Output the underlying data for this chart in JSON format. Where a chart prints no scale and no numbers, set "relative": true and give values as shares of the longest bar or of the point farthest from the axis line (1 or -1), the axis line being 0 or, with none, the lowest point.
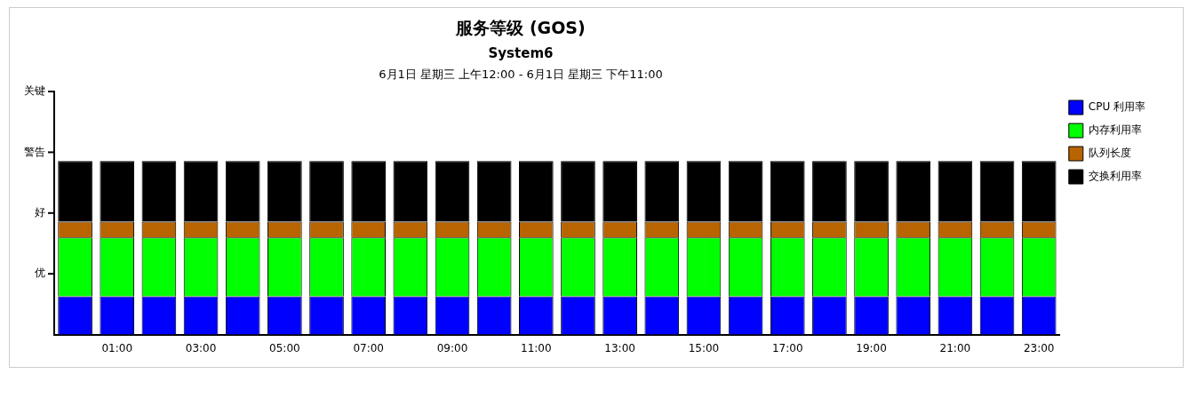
{
  "chart_data": {
    "type": "bar",
    "title": "服务等级 (GOS)",
    "subtitle": "System6",
    "annotations": [
      "6月1日 星期三 上午12:00 - 6月1日 星期三 下午11:00",
      "优",
      "好",
      "警告",
      "关键"
    ],
    "relative": true,
    "categories": [
      null,
      "01:00",
      null,
      "03:00",
      null,
      "05:00",
      null,
      "07:00",
      null,
      "09:00",
      null,
      "11:00",
      null,
      "13:00",
      null,
      "15:00",
      null,
      "17:00",
      null,
      "19:00",
      null,
      "21:00",
      null,
      "23:00"
    ],
    "stacked": true,
    "legend": "top right",
    "grid": false,
    "series": [
      {
        "name": "CPU 利用率",
        "color": "#0000ff",
        "values": [
          0.22,
          0.22,
          0.22,
          0.22,
          0.22,
          0.22,
          0.22,
          0.22,
          0.22,
          0.22,
          0.22,
          0.22,
          0.22,
          0.22,
          0.22,
          0.22,
          0.22,
          0.22,
          0.22,
          0.22,
          0.22,
          0.22,
          0.22,
          0.22
        ]
      },
      {
        "name": "内存利用率",
        "color": "#00ff00",
        "values": [
          0.34,
          0.34,
          0.34,
          0.34,
          0.34,
          0.34,
          0.34,
          0.34,
          0.34,
          0.34,
          0.34,
          0.34,
          0.34,
          0.34,
          0.34,
          0.34,
          0.34,
          0.34,
          0.34,
          0.34,
          0.34,
          0.34,
          0.34,
          0.34
        ]
      },
      {
        "name": "队列长度",
        "color": "#b86400",
        "values": [
          0.09,
          0.09,
          0.09,
          0.09,
          0.09,
          0.09,
          0.09,
          0.09,
          0.09,
          0.09,
          0.09,
          0.09,
          0.09,
          0.09,
          0.09,
          0.09,
          0.09,
          0.09,
          0.09,
          0.09,
          0.09,
          0.09,
          0.09,
          0.09
        ]
      },
      {
        "name": "交换利用率",
        "color": "#000000",
        "values": [
          0.35,
          0.35,
          0.35,
          0.35,
          0.35,
          0.35,
          0.35,
          0.35,
          0.35,
          0.35,
          0.35,
          0.35,
          0.35,
          0.35,
          0.35,
          0.35,
          0.35,
          0.35,
          0.35,
          0.35,
          0.35,
          0.35,
          0.35,
          0.35
        ]
      }
    ]
  }
}
